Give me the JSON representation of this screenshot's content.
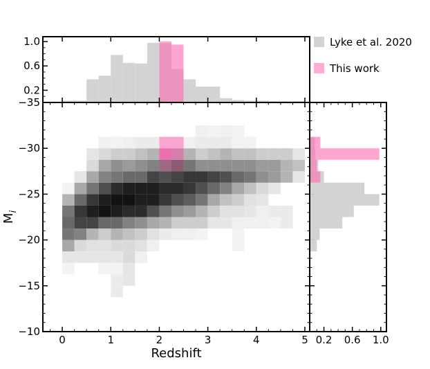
{
  "chart_data": [
    {
      "type": "heatmap",
      "xlabel": "Redshift",
      "ylabel": "M",
      "ylabel_subscript": "i",
      "xlim": [
        -0.4,
        5.1
      ],
      "ylim": [
        -10,
        -35
      ],
      "x_ticks": [
        0,
        1,
        2,
        3,
        4,
        5
      ],
      "x_tick_labels": [
        "0",
        "1",
        "2",
        "3",
        "4",
        "5"
      ],
      "y_ticks": [
        -10,
        -15,
        -20,
        -25,
        -30,
        -35
      ],
      "y_tick_labels": [
        "−10",
        "−15",
        "−20",
        "−25",
        "−30",
        "−35"
      ],
      "x_bin_edges": [
        0.0,
        0.25,
        0.5,
        0.75,
        1.0,
        1.25,
        1.5,
        1.75,
        2.0,
        2.25,
        2.5,
        2.75,
        3.0,
        3.25,
        3.5,
        3.75,
        4.0,
        4.25,
        4.5,
        4.75,
        5.0
      ],
      "y_bin_edges": [
        -12.5,
        -13.75,
        -15,
        -16.25,
        -17.5,
        -18.75,
        -20,
        -21.25,
        -22.5,
        -23.75,
        -25,
        -26.25,
        -27.5,
        -28.75,
        -30,
        -31.25,
        -32.5
      ],
      "series": [
        {
          "name": "Lyke et al. 2020",
          "color": "#000000",
          "density": [
            [
              0,
              0,
              0,
              0,
              0,
              0,
              0,
              0,
              0,
              0,
              0,
              0,
              0,
              0,
              0,
              0,
              0,
              0,
              0,
              0
            ],
            [
              0,
              0,
              0,
              0,
              0.08,
              0,
              0,
              0,
              0,
              0,
              0,
              0,
              0,
              0,
              0,
              0,
              0,
              0,
              0,
              0
            ],
            [
              0,
              0,
              0,
              0,
              0.08,
              0.1,
              0,
              0,
              0,
              0,
              0,
              0,
              0,
              0,
              0,
              0,
              0,
              0,
              0,
              0
            ],
            [
              0.05,
              0,
              0,
              0.05,
              0.05,
              0.1,
              0,
              0,
              0,
              0,
              0,
              0,
              0,
              0,
              0,
              0,
              0,
              0,
              0,
              0
            ],
            [
              0.1,
              0.1,
              0.1,
              0.1,
              0.1,
              0.15,
              0.06,
              0,
              0,
              0,
              0,
              0,
              0,
              0,
              0,
              0,
              0,
              0,
              0,
              0
            ],
            [
              0.35,
              0.15,
              0.12,
              0.12,
              0.15,
              0.15,
              0.12,
              0.06,
              0,
              0,
              0,
              0,
              0,
              0,
              0.05,
              0,
              0,
              0,
              0,
              0
            ],
            [
              0.55,
              0.5,
              0.3,
              0.2,
              0.3,
              0.25,
              0.2,
              0.12,
              0.08,
              0.06,
              0.06,
              0.05,
              0,
              0,
              0.05,
              0,
              0,
              0,
              0,
              0
            ],
            [
              0.6,
              0.75,
              0.75,
              0.6,
              0.6,
              0.5,
              0.45,
              0.35,
              0.3,
              0.2,
              0.2,
              0.2,
              0.1,
              0.1,
              0.06,
              0.06,
              0.06,
              0.05,
              0.08,
              0
            ],
            [
              0.55,
              0.8,
              0.9,
              0.95,
              0.9,
              0.85,
              0.85,
              0.7,
              0.55,
              0.45,
              0.4,
              0.3,
              0.2,
              0.12,
              0.12,
              0.1,
              0.06,
              0.08,
              0.08,
              0
            ],
            [
              0.3,
              0.6,
              0.8,
              0.9,
              0.95,
              0.95,
              0.9,
              0.9,
              0.8,
              0.7,
              0.65,
              0.55,
              0.35,
              0.25,
              0.2,
              0.12,
              0.1,
              0,
              0,
              0
            ],
            [
              0.05,
              0.35,
              0.55,
              0.7,
              0.85,
              0.9,
              0.9,
              0.9,
              0.85,
              0.85,
              0.8,
              0.7,
              0.6,
              0.5,
              0.35,
              0.25,
              0.15,
              0.1,
              0,
              0
            ],
            [
              0,
              0.1,
              0.35,
              0.5,
              0.55,
              0.6,
              0.6,
              0.75,
              0.7,
              0.75,
              0.8,
              0.8,
              0.75,
              0.7,
              0.6,
              0.55,
              0.45,
              0.4,
              0.3,
              0.1
            ],
            [
              0,
              0,
              0.15,
              0.35,
              0.45,
              0.4,
              0.45,
              0.5,
              0.6,
              0.7,
              0.55,
              0.45,
              0.45,
              0.45,
              0.45,
              0.45,
              0.4,
              0.4,
              0.3,
              0.25
            ],
            [
              0,
              0,
              0.1,
              0.15,
              0.2,
              0.2,
              0.25,
              0.3,
              0.45,
              0.4,
              0.3,
              0.2,
              0.25,
              0.3,
              0.25,
              0.25,
              0.2,
              0.2,
              0.2,
              0.1
            ],
            [
              0,
              0,
              0,
              0.06,
              0.05,
              0.06,
              0.08,
              0.08,
              0.06,
              0.06,
              0.06,
              0.08,
              0.08,
              0.08,
              0.05,
              0.05,
              0,
              0,
              0,
              0
            ],
            [
              0,
              0,
              0,
              0,
              0,
              0,
              0,
              0,
              0,
              0,
              0,
              0.06,
              0.05,
              0.06,
              0.05,
              0,
              0,
              0,
              0,
              0
            ]
          ]
        },
        {
          "name": "This work",
          "color": "#ff69b4",
          "cells": [
            {
              "x0": 2.0,
              "x1": 2.25,
              "y0": -27.5,
              "y1": -28.75,
              "alpha": 0.35
            },
            {
              "x0": 2.25,
              "x1": 2.5,
              "y0": -27.5,
              "y1": -28.75,
              "alpha": 0.35
            },
            {
              "x0": 2.0,
              "x1": 2.25,
              "y0": -28.75,
              "y1": -30.0,
              "alpha": 0.85
            },
            {
              "x0": 2.25,
              "x1": 2.5,
              "y0": -28.75,
              "y1": -30.0,
              "alpha": 0.55
            },
            {
              "x0": 2.0,
              "x1": 2.25,
              "y0": -30.0,
              "y1": -31.25,
              "alpha": 0.55
            },
            {
              "x0": 2.25,
              "x1": 2.5,
              "y0": -30.0,
              "y1": -31.25,
              "alpha": 0.55
            }
          ]
        }
      ]
    },
    {
      "type": "bar",
      "orientation": "vertical",
      "x_shared_with": "main",
      "ylim": [
        0,
        1.08
      ],
      "y_ticks": [
        0.2,
        0.6,
        1.0
      ],
      "y_tick_labels": [
        "0.2",
        "0.6",
        "1.0"
      ],
      "series": [
        {
          "name": "Lyke et al. 2020",
          "color": "#d3d3d3",
          "bin_edges": [
            0.0,
            0.25,
            0.5,
            0.75,
            1.0,
            1.25,
            1.5,
            1.75,
            2.0,
            2.25,
            2.5,
            2.75,
            3.0,
            3.25,
            3.5,
            3.75,
            4.0,
            4.25,
            4.5,
            4.75,
            5.0
          ],
          "values": [
            0.03,
            0.03,
            0.38,
            0.44,
            0.78,
            0.65,
            0.64,
            0.98,
            0.97,
            0.55,
            0.38,
            0.26,
            0.26,
            0.07,
            0.04,
            0.03,
            0.03,
            0.02,
            0.02,
            0.02
          ]
        },
        {
          "name": "This work",
          "color": "#ff69b4",
          "bin_edges": [
            2.0,
            2.25,
            2.5
          ],
          "values": [
            1.0,
            0.95
          ]
        }
      ]
    },
    {
      "type": "bar",
      "orientation": "horizontal",
      "y_shared_with": "main",
      "xlim": [
        0,
        1.08
      ],
      "x_ticks": [
        0.2,
        0.6,
        1.0
      ],
      "x_tick_labels": [
        "0.2",
        "0.6",
        "1.0"
      ],
      "series": [
        {
          "name": "Lyke et al. 2020",
          "color": "#d3d3d3",
          "bin_edges": [
            -18.75,
            -20.0,
            -21.25,
            -22.5,
            -23.75,
            -25.0,
            -26.25,
            -27.5,
            -28.75,
            -30.0,
            -31.25
          ],
          "values": [
            0.1,
            0.14,
            0.46,
            0.62,
            0.98,
            0.77,
            0.2,
            0.12,
            0.08,
            0.07
          ]
        },
        {
          "name": "This work",
          "color": "#ff69b4",
          "bin_edges": [
            -26.25,
            -27.5,
            -28.75,
            -30.0,
            -31.25
          ],
          "values": [
            0.15,
            0.1,
            0.98,
            0.15
          ]
        }
      ]
    }
  ],
  "legend": {
    "placement": "top-right",
    "items": [
      {
        "label": "Lyke et al. 2020",
        "color": "#d3d3d3"
      },
      {
        "label": "This work",
        "color": "#ff69b4"
      }
    ]
  }
}
